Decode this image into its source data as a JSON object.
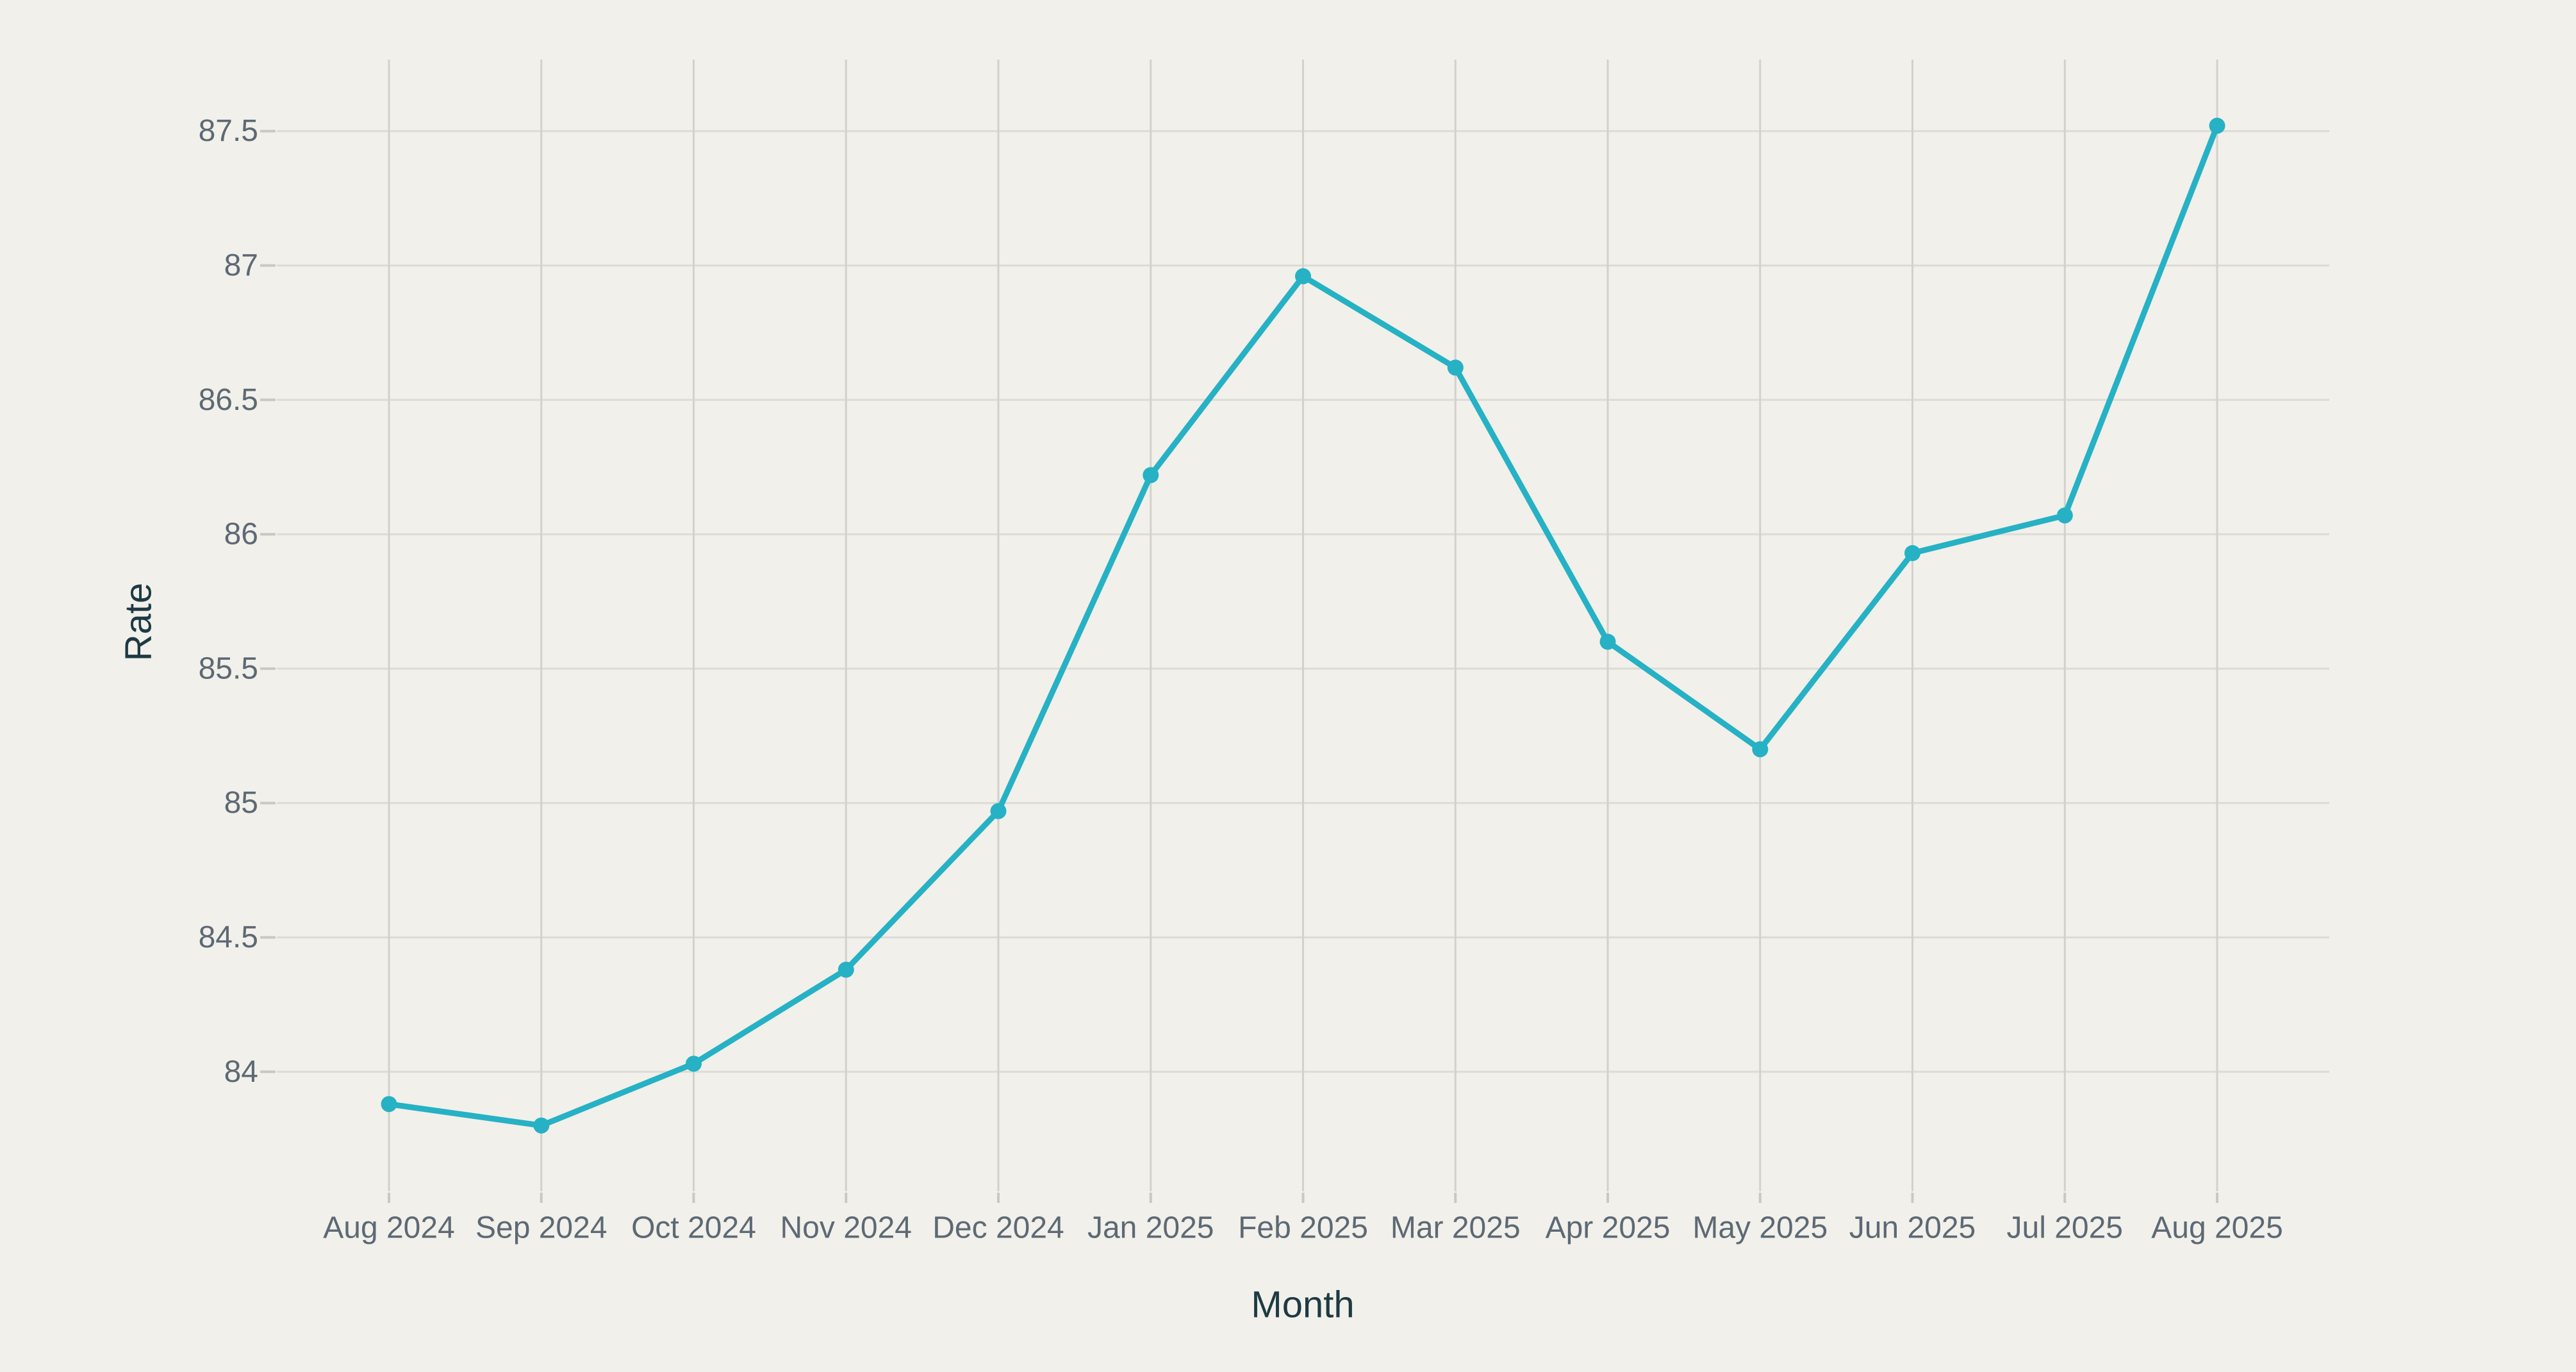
{
  "chart_data": {
    "type": "line",
    "title": "",
    "xlabel": "Month",
    "ylabel": "Rate",
    "categories": [
      "Aug 2024",
      "Sep 2024",
      "Oct 2024",
      "Nov 2024",
      "Dec 2024",
      "Jan 2025",
      "Feb 2025",
      "Mar 2025",
      "Apr 2025",
      "May 2025",
      "Jun 2025",
      "Jul 2025",
      "Aug 2025"
    ],
    "series": [
      {
        "name": "Rate",
        "values": [
          83.88,
          83.8,
          84.03,
          84.38,
          84.97,
          86.22,
          86.96,
          86.62,
          85.6,
          85.2,
          85.93,
          86.07,
          87.52
        ]
      }
    ],
    "yticks": [
      84,
      84.5,
      85,
      85.5,
      86,
      86.5,
      87,
      87.5
    ],
    "ylim": [
      83.69,
      87.78
    ],
    "grid": true,
    "legend": false,
    "marker": "circle"
  },
  "style": {
    "background_color": "#f1f0ea",
    "line_color": "#26b1c5",
    "marker_color": "#26b1c5",
    "h_grid_color": "#dcdbd5",
    "v_grid_color": "#d2d1cb",
    "tick_color": "#c9c8c2",
    "tick_label_color": "#5d6974",
    "axis_title_color": "#1d3a43"
  }
}
